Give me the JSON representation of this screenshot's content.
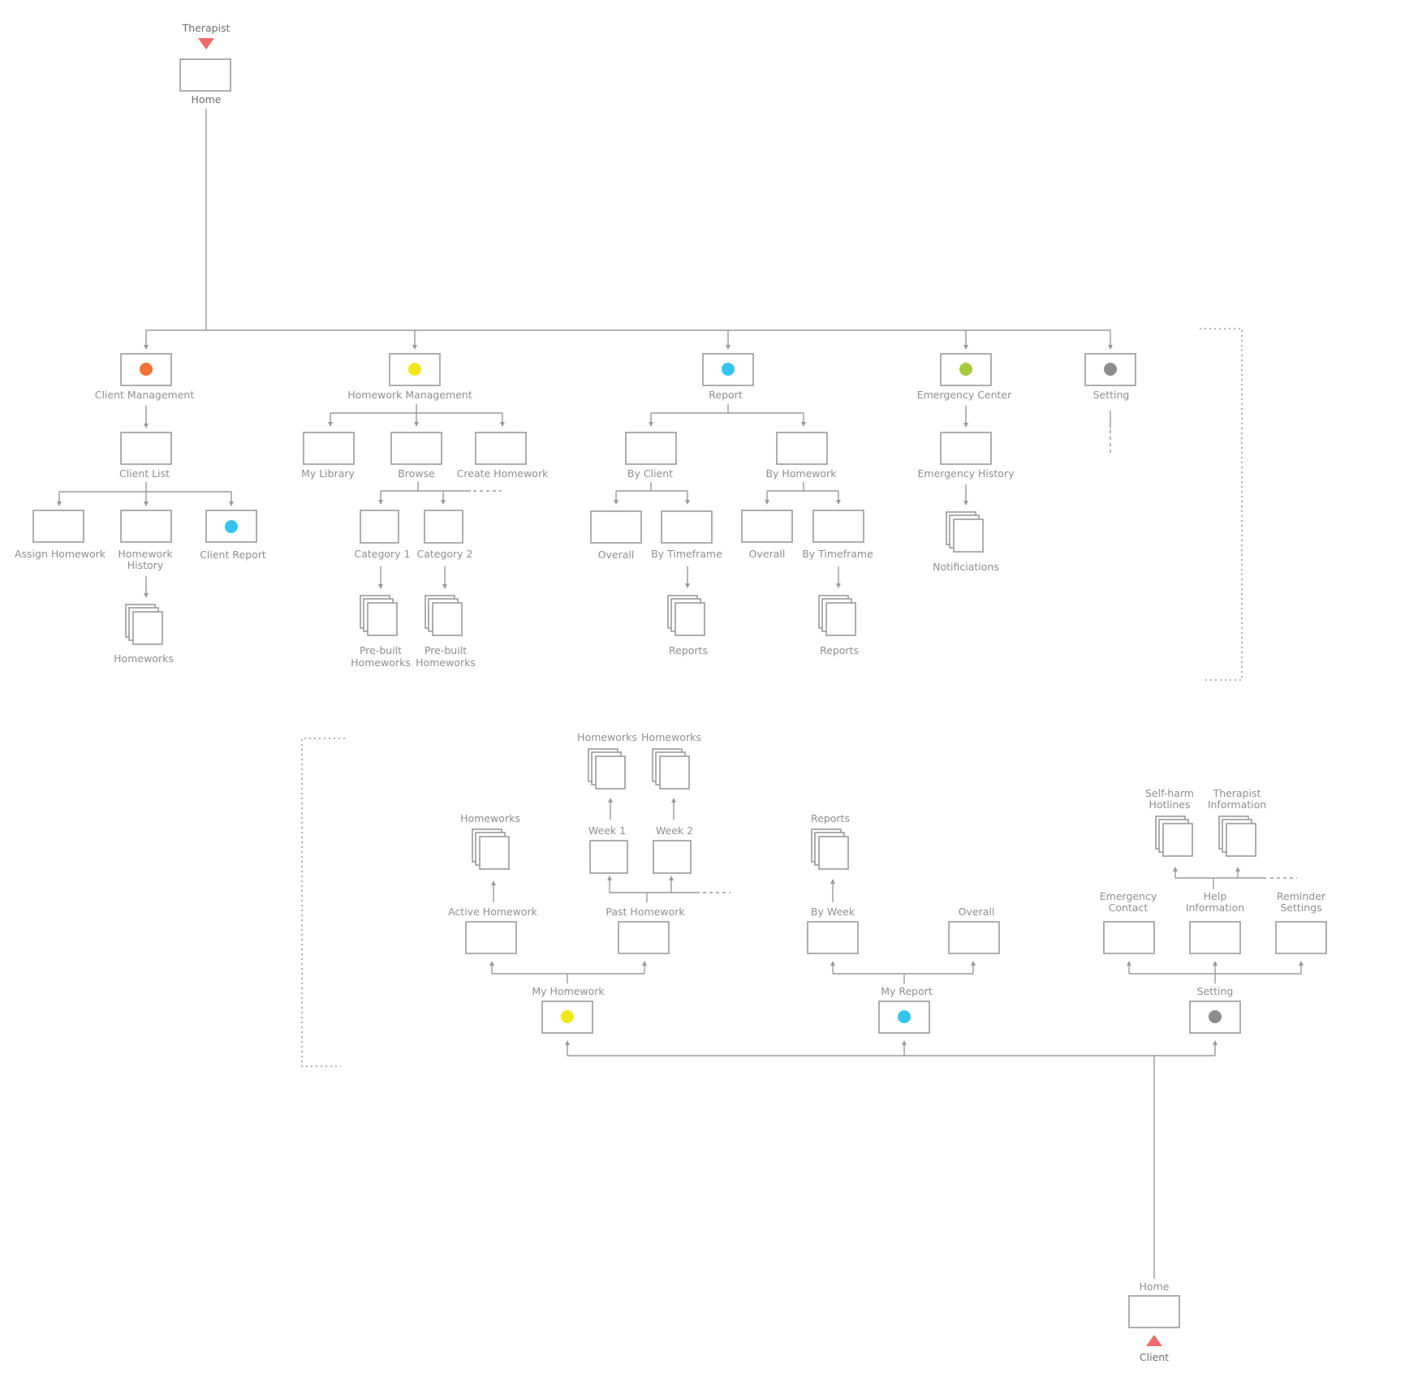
{
  "colors": {
    "orange": "#f07234",
    "yellow": "#f1e71c",
    "blue": "#34c4f0",
    "green": "#a5cd39",
    "gray": "#8d8d8d",
    "marker": "#f06a6a"
  },
  "therapist": {
    "role": "Therapist",
    "home": "Home",
    "client_management": "Client Management",
    "client_list": "Client List",
    "assign_homework": "Assign Homework",
    "homework_history_1": "Homework",
    "homework_history_2": "History",
    "client_report": "Client Report",
    "homeworks": "Homeworks",
    "homework_management": "Homework Management",
    "my_library": "My Library",
    "browse": "Browse",
    "create_homework": "Create Homework",
    "category_1": "Category 1",
    "category_2": "Category 2",
    "prebuilt_1": "Pre-built",
    "prebuilt_2": "Homeworks",
    "report": "Report",
    "by_client": "By Client",
    "by_homework": "By Homework",
    "overall": "Overall",
    "by_timeframe": "By Timeframe",
    "reports": "Reports",
    "emergency_center": "Emergency Center",
    "emergency_history": "Emergency History",
    "notifications": "Notificiations",
    "setting": "Setting"
  },
  "client": {
    "role": "Client",
    "home": "Home",
    "my_homework": "My Homework",
    "active_homework": "Active Homework",
    "past_homework": "Past Homework",
    "homeworks": "Homeworks",
    "week_1": "Week 1",
    "week_2": "Week 2",
    "my_report": "My Report",
    "by_week": "By Week",
    "overall": "Overall",
    "reports": "Reports",
    "setting": "Setting",
    "emergency_contact_1": "Emergency",
    "emergency_contact_2": "Contact",
    "help_information_1": "Help",
    "help_information_2": "Information",
    "reminder_settings_1": "Reminder",
    "reminder_settings_2": "Settings",
    "self_harm_1": "Self-harm",
    "self_harm_2": "Hotlines",
    "therapist_info_1": "Therapist",
    "therapist_info_2": "Information"
  }
}
